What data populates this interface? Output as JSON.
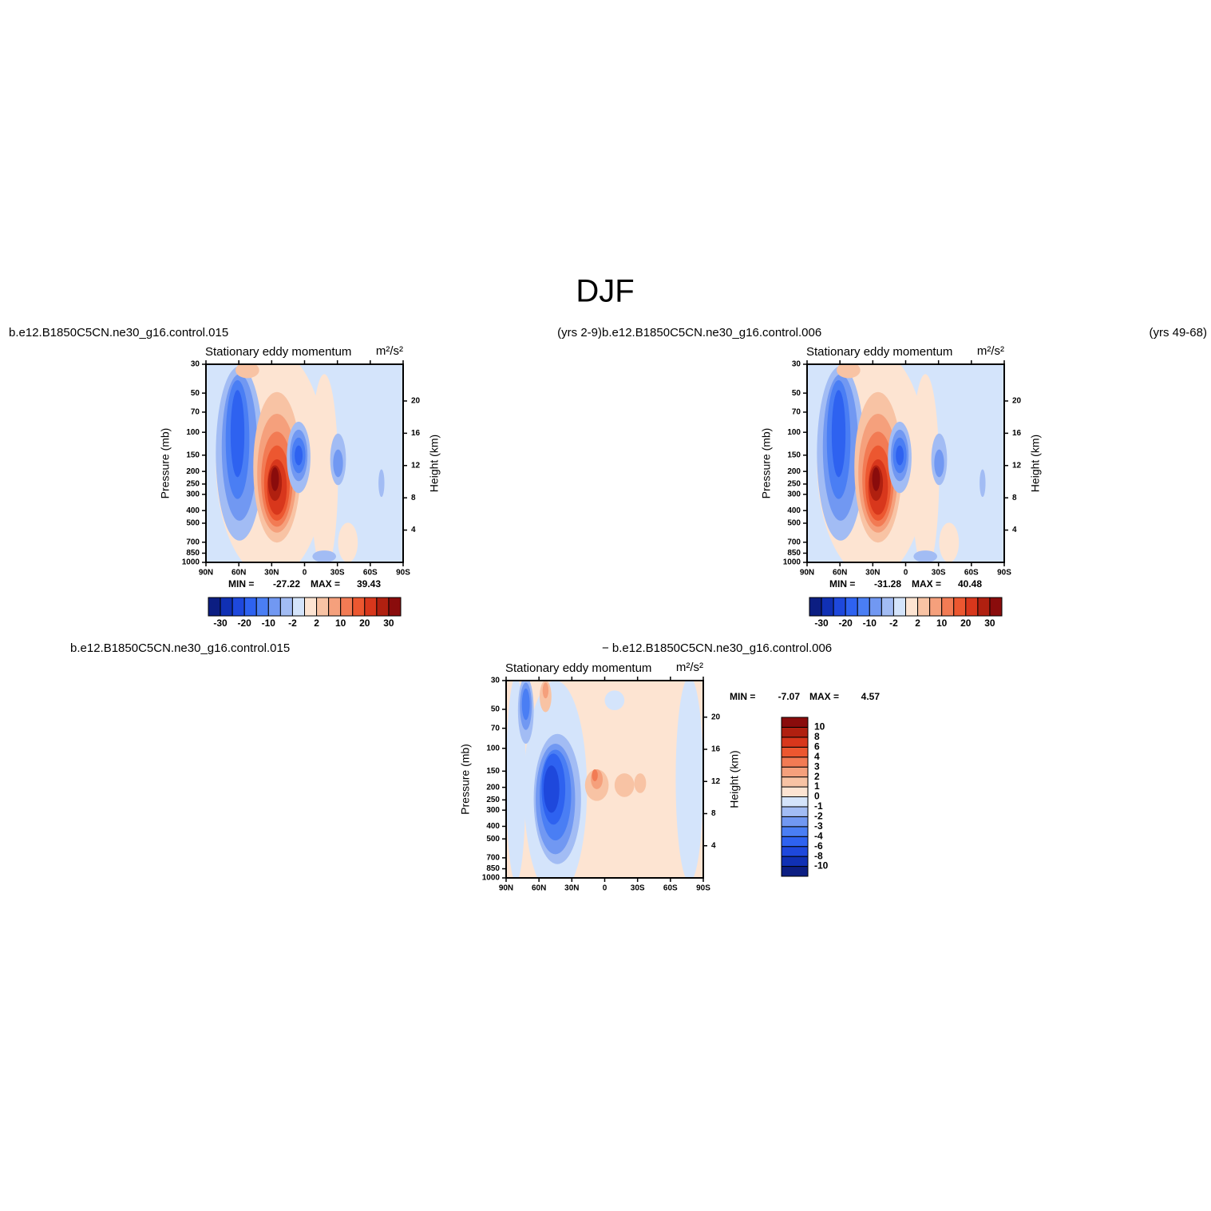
{
  "title": "DJF",
  "chart_data": [
    {
      "type": "contour",
      "title": "Stationary eddy momentum",
      "units": "m²/s²",
      "left_string": "b.e12.B1850C5CN.ne30_g16.control.015",
      "right_string": "(yrs 2-9)",
      "ylabel": "Pressure (mb)",
      "y2label": "Height (km)",
      "ylim": [
        1000,
        30
      ],
      "ylog": true,
      "yticks": [
        30,
        50,
        70,
        100,
        150,
        200,
        250,
        300,
        400,
        500,
        700,
        850,
        1000
      ],
      "y2lim": [
        0,
        24.55
      ],
      "y2ticks": [
        4,
        8,
        12,
        16,
        20
      ],
      "xlim": [
        90,
        -90
      ],
      "xticks": [
        {
          "value": 90,
          "label": "90N"
        },
        {
          "value": 60,
          "label": "60N"
        },
        {
          "value": 30,
          "label": "30N"
        },
        {
          "value": 0,
          "label": "0"
        },
        {
          "value": -30,
          "label": "30S"
        },
        {
          "value": -60,
          "label": "60S"
        },
        {
          "value": -90,
          "label": "90S"
        }
      ],
      "levels": [
        -30,
        -25,
        -20,
        -15,
        -10,
        -5,
        -2,
        0,
        2,
        5,
        10,
        15,
        20,
        25,
        30
      ],
      "colors": [
        "#0c1e82",
        "#1030b4",
        "#1e48dc",
        "#2e62f0",
        "#4a7ef4",
        "#7198f2",
        "#a2bcf4",
        "#d4e4fb",
        "#fde4d2",
        "#f8c3a4",
        "#f5a07c",
        "#f27b54",
        "#ec5730",
        "#d8371c",
        "#b02010",
        "#8a0c0c"
      ],
      "colorbar": "horizontal",
      "min_label": "MIN =",
      "min": -27.22,
      "max_label": "MAX =",
      "max": 39.43
    },
    {
      "type": "contour",
      "title": "Stationary eddy momentum",
      "units": "m²/s²",
      "left_string": "b.e12.B1850C5CN.ne30_g16.control.006",
      "right_string": "(yrs 49-68)",
      "ylabel": "Pressure (mb)",
      "y2label": "Height (km)",
      "ylim": [
        1000,
        30
      ],
      "ylog": true,
      "yticks": [
        30,
        50,
        70,
        100,
        150,
        200,
        250,
        300,
        400,
        500,
        700,
        850,
        1000
      ],
      "y2lim": [
        0,
        24.55
      ],
      "y2ticks": [
        4,
        8,
        12,
        16,
        20
      ],
      "xlim": [
        90,
        -90
      ],
      "xticks": [
        {
          "value": 90,
          "label": "90N"
        },
        {
          "value": 60,
          "label": "60N"
        },
        {
          "value": 30,
          "label": "30N"
        },
        {
          "value": 0,
          "label": "0"
        },
        {
          "value": -30,
          "label": "30S"
        },
        {
          "value": -60,
          "label": "60S"
        },
        {
          "value": -90,
          "label": "90S"
        }
      ],
      "levels": [
        -30,
        -25,
        -20,
        -15,
        -10,
        -5,
        -2,
        0,
        2,
        5,
        10,
        15,
        20,
        25,
        30
      ],
      "colors": [
        "#0c1e82",
        "#1030b4",
        "#1e48dc",
        "#2e62f0",
        "#4a7ef4",
        "#7198f2",
        "#a2bcf4",
        "#d4e4fb",
        "#fde4d2",
        "#f8c3a4",
        "#f5a07c",
        "#f27b54",
        "#ec5730",
        "#d8371c",
        "#b02010",
        "#8a0c0c"
      ],
      "colorbar": "horizontal",
      "min_label": "MIN =",
      "min": -31.28,
      "max_label": "MAX =",
      "max": 40.48
    },
    {
      "type": "contour",
      "title": "Stationary eddy momentum",
      "units": "m²/s²",
      "left_string": "b.e12.B1850C5CN.ne30_g16.control.015",
      "right_string": "− b.e12.B1850C5CN.ne30_g16.control.006",
      "ylabel": "Pressure (mb)",
      "y2label": "Height (km)",
      "ylim": [
        1000,
        30
      ],
      "ylog": true,
      "yticks": [
        30,
        50,
        70,
        100,
        150,
        200,
        250,
        300,
        400,
        500,
        700,
        850,
        1000
      ],
      "y2lim": [
        0,
        24.55
      ],
      "y2ticks": [
        4,
        8,
        12,
        16,
        20
      ],
      "xlim": [
        90,
        -90
      ],
      "xticks": [
        {
          "value": 90,
          "label": "90N"
        },
        {
          "value": 60,
          "label": "60N"
        },
        {
          "value": 30,
          "label": "30N"
        },
        {
          "value": 0,
          "label": "0"
        },
        {
          "value": -30,
          "label": "30S"
        },
        {
          "value": -60,
          "label": "60S"
        },
        {
          "value": -90,
          "label": "90S"
        }
      ],
      "levels": [
        -10,
        -8,
        -6,
        -4,
        -3,
        -2,
        -1,
        0,
        1,
        2,
        3,
        4,
        6,
        8,
        10
      ],
      "colors": [
        "#0c1e82",
        "#1030b4",
        "#1e48dc",
        "#2e62f0",
        "#4a7ef4",
        "#7198f2",
        "#a2bcf4",
        "#d4e4fb",
        "#fde4d2",
        "#f8c3a4",
        "#f5a07c",
        "#f27b54",
        "#ec5730",
        "#d8371c",
        "#b02010",
        "#8a0c0c"
      ],
      "colorbar": "vertical",
      "min_label": "MIN =",
      "min": -7.07,
      "max_label": "MAX =",
      "max": 4.57
    }
  ]
}
